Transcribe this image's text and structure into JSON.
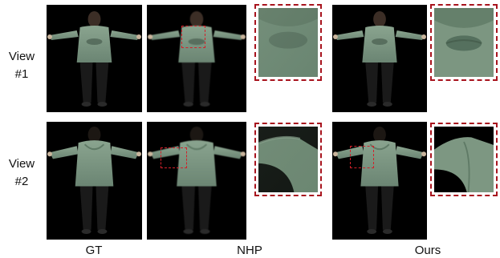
{
  "rows": [
    {
      "label_line1": "View",
      "label_line2": "#1"
    },
    {
      "label_line1": "View",
      "label_line2": "#2"
    }
  ],
  "columns": {
    "gt": "GT",
    "nhp": "NHP",
    "ours": "Ours"
  },
  "colors": {
    "highlight": "#a8141e",
    "hoodie": "#7f9a86",
    "background": "#000000"
  }
}
